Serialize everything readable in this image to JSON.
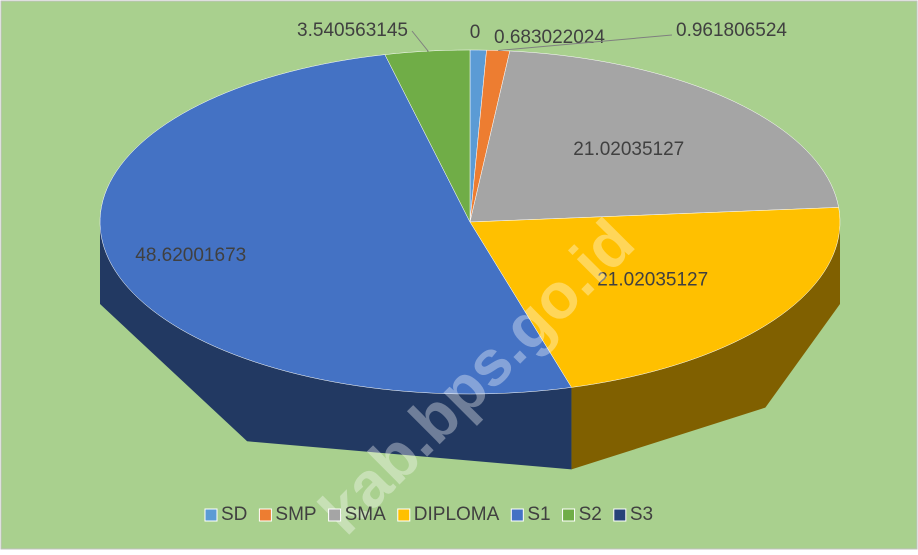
{
  "chart_data": {
    "type": "pie3d",
    "categories": [
      "SD",
      "SMP",
      "SMA",
      "DIPLOMA",
      "S1",
      "S2",
      "S3"
    ],
    "values": [
      0.683022024,
      0.961806524,
      21.02035127,
      21.02035127,
      48.62001673,
      3.540563145,
      0
    ],
    "colors": [
      "#5b9bd5",
      "#ed7d31",
      "#a5a5a5",
      "#ffc000",
      "#4472c4",
      "#70ad47",
      "#264478"
    ],
    "legend": "bottom",
    "watermark": "kab.bps.go.id"
  }
}
